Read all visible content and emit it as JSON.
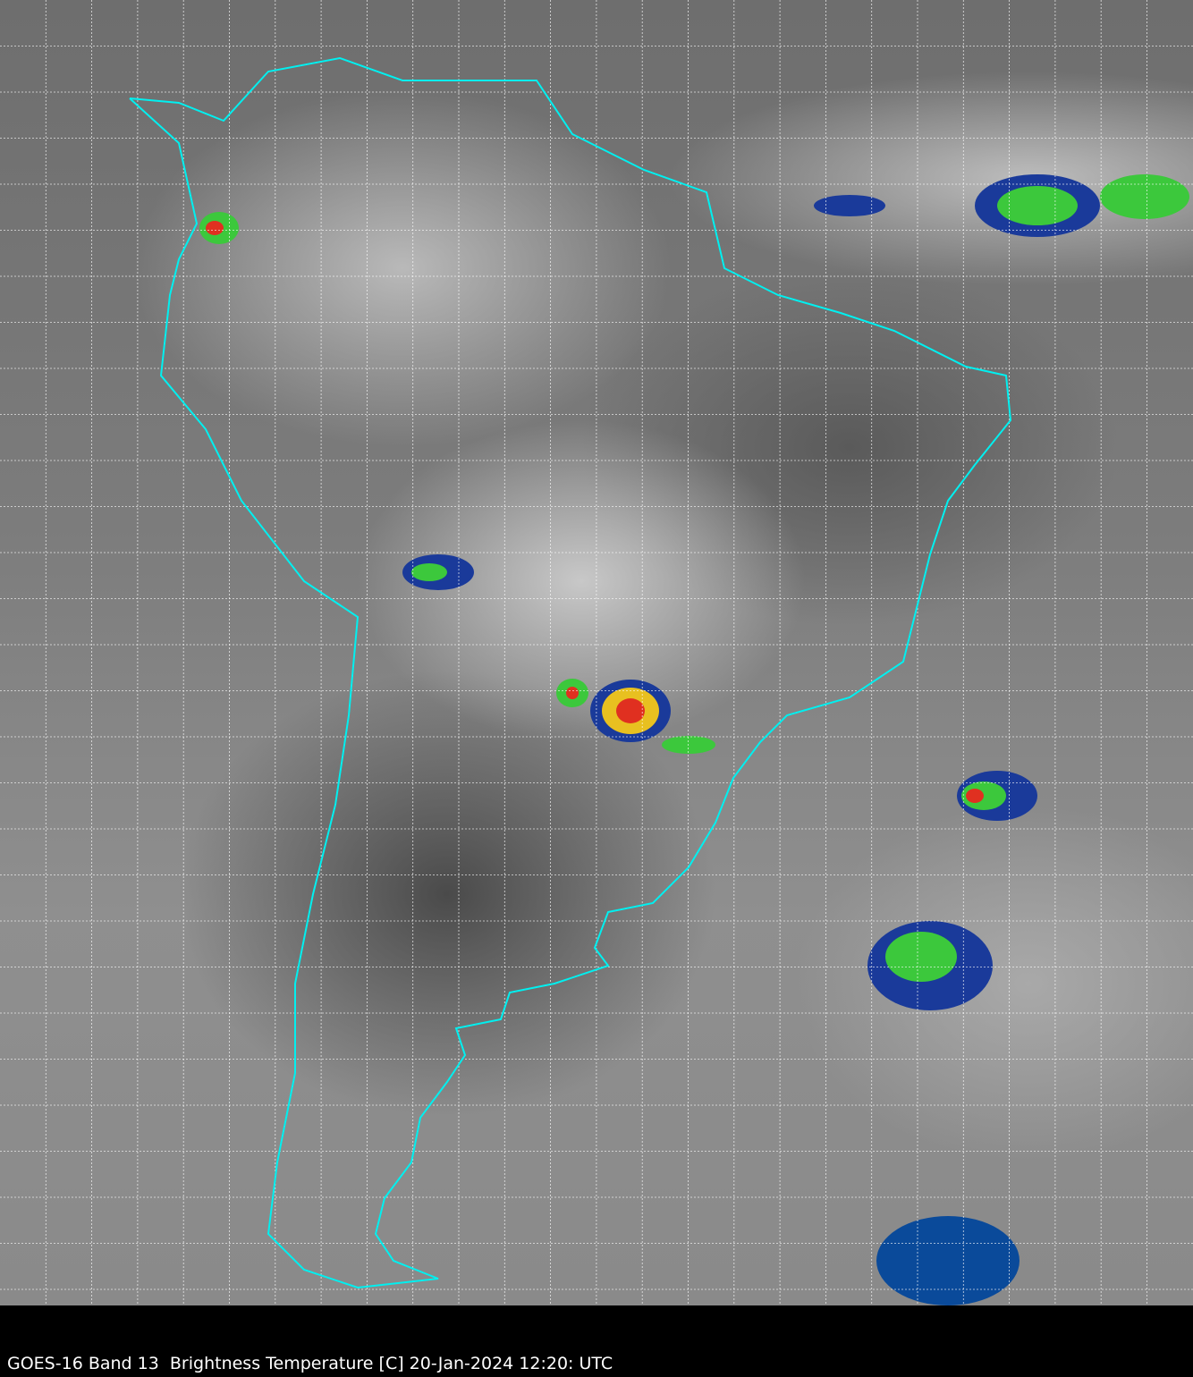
{
  "caption": "GOES-16 Band 13  Brightness Temperature [C] 20-Jan-2024 12:20: UTC",
  "colors": {
    "border": "#00f0f0",
    "grid": "#ffffff",
    "background_bar": "#000000"
  }
}
